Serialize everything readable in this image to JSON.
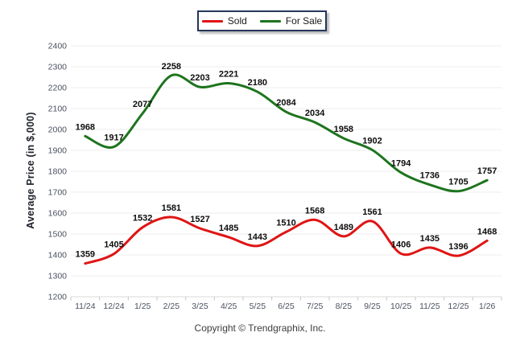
{
  "legend": {
    "items": [
      {
        "label": "Sold",
        "color": "#e01414"
      },
      {
        "label": "For Sale",
        "color": "#1e741e"
      }
    ]
  },
  "y_axis": {
    "title": "Average Price (in $,000)"
  },
  "footer": {
    "copyright": "Copyright © Trendgraphix, Inc."
  },
  "chart_data": {
    "type": "line",
    "title": "",
    "categories": [
      "11/24",
      "12/24",
      "1/25",
      "2/25",
      "3/25",
      "4/25",
      "5/25",
      "6/25",
      "7/25",
      "8/25",
      "9/25",
      "10/25",
      "11/25",
      "12/25",
      "1/26"
    ],
    "series": [
      {
        "name": "Sold",
        "color": "#e01414",
        "values": [
          1359,
          1405,
          1532,
          1581,
          1527,
          1485,
          1443,
          1510,
          1568,
          1489,
          1561,
          1406,
          1435,
          1396,
          1468
        ]
      },
      {
        "name": "For Sale",
        "color": "#1e741e",
        "values": [
          1968,
          1917,
          2077,
          2258,
          2203,
          2221,
          2180,
          2084,
          2034,
          1958,
          1902,
          1794,
          1736,
          1705,
          1757
        ]
      }
    ],
    "xlabel": "",
    "ylabel": "Average Price (in $,000)",
    "ylim": [
      1200,
      2400
    ],
    "y_tick_step": 100,
    "grid": true,
    "legend_position": "top",
    "data_labels": true
  }
}
